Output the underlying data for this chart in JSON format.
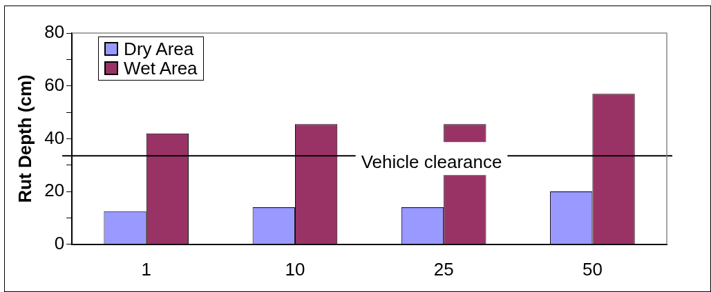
{
  "chart_data": {
    "type": "bar",
    "ylabel": "Rut Depth (cm)",
    "categories": [
      "1",
      "10",
      "25",
      "50"
    ],
    "series": [
      {
        "name": "Dry Area",
        "color": "#9999ff",
        "values": [
          12.5,
          14,
          14,
          20
        ]
      },
      {
        "name": "Wet Area",
        "color": "#993366",
        "values": [
          42,
          45.5,
          45.5,
          57
        ]
      }
    ],
    "ylim": [
      0,
      80
    ],
    "yticks": [
      0,
      {
        "value": 10,
        "label": null
      },
      20,
      {
        "value": 30,
        "label": null
      },
      40,
      {
        "value": 50,
        "label": null
      },
      60,
      {
        "value": 70,
        "label": null
      },
      80
    ],
    "ref_lines": [
      {
        "axis": "y",
        "value": 33.5,
        "label": "Vehicle clearance",
        "color": "#000000"
      }
    ],
    "grid": false,
    "legend": "top left"
  }
}
